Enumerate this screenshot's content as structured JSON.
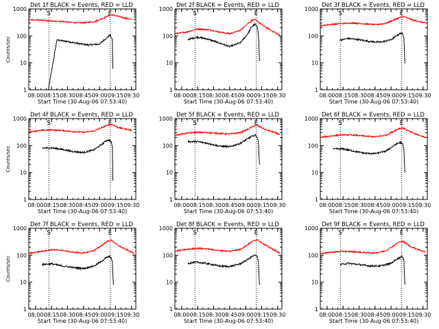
{
  "figure": {
    "xlabel": "Start Time (30-Aug-06 07:53:40)",
    "ylabel": "Counts/sec",
    "x_ticks": [
      "08:00",
      "08:15",
      "08:30",
      "08:45",
      "09:00",
      "09:15",
      "09:30"
    ],
    "y_ticks": [
      "1",
      "10",
      "100",
      "1000"
    ],
    "marker_s": "S",
    "marker_e": "E",
    "colors": {
      "events": "#000000",
      "lld": "#ff0000",
      "axes": "#000000",
      "background": "#ffffff"
    }
  },
  "chart_data": [
    {
      "type": "line",
      "title": "Det 1f BLACK = Events, RED = LLD",
      "xlabel": "Start Time (30-Aug-06 07:53:40)",
      "ylabel": "Counts/sec",
      "x_range": [
        "07:53:40",
        "09:34:00"
      ],
      "ylim": [
        1,
        1000
      ],
      "y_scale": "log",
      "x_ticks": [
        "08:00",
        "08:15",
        "08:30",
        "08:45",
        "09:00",
        "09:15",
        "09:30"
      ],
      "markers": [
        {
          "label": "S",
          "x": "08:12:30"
        },
        {
          "label": "E",
          "x": "09:10:00"
        }
      ],
      "series": [
        {
          "name": "Events",
          "color": "#000000",
          "x": [
            "08:12:00",
            "08:20:00",
            "08:30:00",
            "08:40:00",
            "08:50:00",
            "09:00:00",
            "09:05:00",
            "09:09:00",
            "09:10:00",
            "09:12:00",
            "09:12:30"
          ],
          "y": [
            1,
            70,
            62,
            52,
            46,
            50,
            75,
            100,
            110,
            70,
            6
          ]
        },
        {
          "name": "LLD",
          "color": "#ff0000",
          "x": [
            "07:53:40",
            "08:05:00",
            "08:15:00",
            "08:25:00",
            "08:35:00",
            "08:45:00",
            "08:55:00",
            "09:02:00",
            "09:08:00",
            "09:12:00",
            "09:20:00",
            "09:30:00"
          ],
          "y": [
            400,
            380,
            350,
            340,
            310,
            305,
            335,
            430,
            550,
            600,
            500,
            400
          ]
        }
      ]
    },
    {
      "type": "line",
      "title": "Det 2f BLACK = Events, RED = LLD",
      "xlabel": "Start Time (30-Aug-06 07:53:40)",
      "ylabel": "Counts/sec",
      "x_range": [
        "07:53:40",
        "09:34:00"
      ],
      "ylim": [
        1,
        1000
      ],
      "y_scale": "log",
      "x_ticks": [
        "08:00",
        "08:15",
        "08:30",
        "08:45",
        "09:00",
        "09:15",
        "09:30"
      ],
      "markers": [
        {
          "label": "S",
          "x": "08:12:30"
        },
        {
          "label": "E",
          "x": "09:10:00"
        }
      ],
      "series": [
        {
          "name": "Events",
          "color": "#000000",
          "x": [
            "08:06:00",
            "08:15:00",
            "08:25:00",
            "08:35:00",
            "08:45:00",
            "08:55:00",
            "09:02:00",
            "09:06:00",
            "09:09:00",
            "09:11:00",
            "09:12:00",
            "09:13:00"
          ],
          "y": [
            75,
            90,
            75,
            55,
            40,
            55,
            120,
            230,
            270,
            200,
            120,
            12
          ]
        },
        {
          "name": "LLD",
          "color": "#ff0000",
          "x": [
            "07:53:40",
            "08:05:00",
            "08:15:00",
            "08:25:00",
            "08:35:00",
            "08:45:00",
            "08:55:00",
            "09:02:00",
            "09:07:00",
            "09:10:00",
            "09:15:00",
            "09:25:00",
            "09:32:00"
          ],
          "y": [
            120,
            140,
            180,
            170,
            140,
            120,
            160,
            290,
            400,
            380,
            260,
            150,
            105
          ]
        }
      ]
    },
    {
      "type": "line",
      "title": "Det 3f BLACK = Events, RED = LLD",
      "xlabel": "Start Time (30-Aug-06 07:53:40)",
      "ylabel": "Counts/sec",
      "x_range": [
        "07:53:40",
        "09:34:00"
      ],
      "ylim": [
        1,
        1000
      ],
      "y_scale": "log",
      "x_ticks": [
        "08:00",
        "08:15",
        "08:30",
        "08:45",
        "09:00",
        "09:15",
        "09:30"
      ],
      "markers": [
        {
          "label": "S",
          "x": "08:12:30"
        },
        {
          "label": "E",
          "x": "09:10:00"
        }
      ],
      "series": [
        {
          "name": "Events",
          "color": "#000000",
          "x": [
            "08:12:00",
            "08:20:00",
            "08:30:00",
            "08:40:00",
            "08:50:00",
            "09:00:00",
            "09:05:00",
            "09:09:00",
            "09:10:00",
            "09:12:00",
            "09:13:00"
          ],
          "y": [
            70,
            80,
            72,
            62,
            58,
            72,
            100,
            125,
            130,
            90,
            10
          ]
        },
        {
          "name": "LLD",
          "color": "#ff0000",
          "x": [
            "07:53:40",
            "08:05:00",
            "08:15:00",
            "08:25:00",
            "08:35:00",
            "08:45:00",
            "08:55:00",
            "09:02:00",
            "09:08:00",
            "09:12:00",
            "09:20:00",
            "09:32:00"
          ],
          "y": [
            240,
            270,
            290,
            300,
            280,
            260,
            290,
            380,
            480,
            520,
            390,
            300
          ]
        }
      ]
    },
    {
      "type": "line",
      "title": "Det 4f BLACK = Events, RED = LLD",
      "xlabel": "Start Time (30-Aug-06 07:53:40)",
      "ylabel": "Counts/sec",
      "x_range": [
        "07:53:40",
        "09:34:00"
      ],
      "ylim": [
        1,
        1000
      ],
      "y_scale": "log",
      "x_ticks": [
        "08:00",
        "08:15",
        "08:30",
        "08:45",
        "09:00",
        "09:15",
        "09:30"
      ],
      "markers": [
        {
          "label": "S",
          "x": "08:12:30"
        },
        {
          "label": "E",
          "x": "09:10:00"
        }
      ],
      "series": [
        {
          "name": "Events",
          "color": "#000000",
          "x": [
            "08:06:00",
            "08:15:00",
            "08:25:00",
            "08:35:00",
            "08:45:00",
            "08:55:00",
            "09:02:00",
            "09:06:00",
            "09:09:00",
            "09:11:00",
            "09:12:00",
            "09:12:30"
          ],
          "y": [
            80,
            82,
            72,
            60,
            55,
            70,
            110,
            150,
            160,
            130,
            90,
            5
          ]
        },
        {
          "name": "LLD",
          "color": "#ff0000",
          "x": [
            "07:53:40",
            "08:05:00",
            "08:15:00",
            "08:25:00",
            "08:35:00",
            "08:45:00",
            "08:55:00",
            "09:02:00",
            "09:07:00",
            "09:11:00",
            "09:18:00",
            "09:30:00"
          ],
          "y": [
            330,
            360,
            380,
            360,
            330,
            310,
            350,
            460,
            560,
            620,
            460,
            370
          ]
        }
      ]
    },
    {
      "type": "line",
      "title": "Det 5f BLACK = Events, RED = LLD",
      "xlabel": "Start Time (30-Aug-06 07:53:40)",
      "ylabel": "Counts/sec",
      "x_range": [
        "07:53:40",
        "09:34:00"
      ],
      "ylim": [
        1,
        1000
      ],
      "y_scale": "log",
      "x_ticks": [
        "08:00",
        "08:15",
        "08:30",
        "08:45",
        "09:00",
        "09:15",
        "09:30"
      ],
      "markers": [
        {
          "label": "S",
          "x": "08:12:30"
        },
        {
          "label": "E",
          "x": "09:10:00"
        }
      ],
      "series": [
        {
          "name": "Events",
          "color": "#000000",
          "x": [
            "08:06:00",
            "08:15:00",
            "08:25:00",
            "08:35:00",
            "08:45:00",
            "08:55:00",
            "09:02:00",
            "09:06:00",
            "09:09:00",
            "09:11:00",
            "09:12:00",
            "09:13:00"
          ],
          "y": [
            140,
            140,
            120,
            95,
            90,
            120,
            180,
            220,
            240,
            200,
            120,
            20
          ]
        },
        {
          "name": "LLD",
          "color": "#ff0000",
          "x": [
            "07:53:40",
            "08:05:00",
            "08:15:00",
            "08:25:00",
            "08:35:00",
            "08:45:00",
            "08:55:00",
            "09:02:00",
            "09:07:00",
            "09:11:00",
            "09:18:00",
            "09:32:00"
          ],
          "y": [
            240,
            290,
            310,
            300,
            280,
            270,
            300,
            400,
            520,
            560,
            400,
            260
          ]
        }
      ]
    },
    {
      "type": "line",
      "title": "Det 6f BLACK = Events, RED = LLD",
      "xlabel": "Start Time (30-Aug-06 07:53:40)",
      "ylabel": "Counts/sec",
      "x_range": [
        "07:53:40",
        "09:34:00"
      ],
      "ylim": [
        1,
        1000
      ],
      "y_scale": "log",
      "x_ticks": [
        "08:00",
        "08:15",
        "08:30",
        "08:45",
        "09:00",
        "09:15",
        "09:30"
      ],
      "markers": [
        {
          "label": "S",
          "x": "08:12:30"
        },
        {
          "label": "E",
          "x": "09:10:00"
        }
      ],
      "series": [
        {
          "name": "Events",
          "color": "#000000",
          "x": [
            "08:06:00",
            "08:15:00",
            "08:25:00",
            "08:35:00",
            "08:45:00",
            "08:55:00",
            "09:02:00",
            "09:06:00",
            "09:09:00",
            "09:11:00",
            "09:12:00",
            "09:13:00"
          ],
          "y": [
            75,
            75,
            62,
            52,
            50,
            62,
            95,
            120,
            130,
            110,
            70,
            10
          ]
        },
        {
          "name": "LLD",
          "color": "#ff0000",
          "x": [
            "07:53:40",
            "08:05:00",
            "08:15:00",
            "08:25:00",
            "08:35:00",
            "08:45:00",
            "08:55:00",
            "09:02:00",
            "09:07:00",
            "09:11:00",
            "09:18:00",
            "09:32:00"
          ],
          "y": [
            200,
            230,
            250,
            245,
            225,
            210,
            240,
            330,
            420,
            450,
            320,
            200
          ]
        }
      ]
    },
    {
      "type": "line",
      "title": "Det 7f BLACK = Events, RED = LLD",
      "xlabel": "Start Time (30-Aug-06 07:53:40)",
      "ylabel": "Counts/sec",
      "x_range": [
        "07:53:40",
        "09:34:00"
      ],
      "ylim": [
        1,
        1000
      ],
      "y_scale": "log",
      "x_ticks": [
        "08:00",
        "08:15",
        "08:30",
        "08:45",
        "09:00",
        "09:15",
        "09:30"
      ],
      "markers": [
        {
          "label": "S",
          "x": "08:12:30"
        },
        {
          "label": "E",
          "x": "09:10:00"
        }
      ],
      "series": [
        {
          "name": "Events",
          "color": "#000000",
          "x": [
            "08:06:00",
            "08:15:00",
            "08:25:00",
            "08:35:00",
            "08:45:00",
            "08:55:00",
            "09:02:00",
            "09:06:00",
            "09:09:00",
            "09:11:00",
            "09:12:00",
            "09:13:00"
          ],
          "y": [
            45,
            48,
            40,
            35,
            32,
            40,
            60,
            80,
            90,
            80,
            50,
            8
          ]
        },
        {
          "name": "LLD",
          "color": "#ff0000",
          "x": [
            "07:53:40",
            "08:05:00",
            "08:15:00",
            "08:25:00",
            "08:35:00",
            "08:45:00",
            "08:55:00",
            "09:02:00",
            "09:07:00",
            "09:11:00",
            "09:18:00",
            "09:32:00"
          ],
          "y": [
            115,
            140,
            160,
            150,
            130,
            120,
            150,
            230,
            320,
            360,
            220,
            120
          ]
        }
      ]
    },
    {
      "type": "line",
      "title": "Det 8f BLACK = Events, RED = LLD",
      "xlabel": "Start Time (30-Aug-06 07:53:40)",
      "ylabel": "Counts/sec",
      "x_range": [
        "07:53:40",
        "09:34:00"
      ],
      "ylim": [
        1,
        1000
      ],
      "y_scale": "log",
      "x_ticks": [
        "08:00",
        "08:15",
        "08:30",
        "08:45",
        "09:00",
        "09:15",
        "09:30"
      ],
      "markers": [
        {
          "label": "S",
          "x": "08:12:30"
        },
        {
          "label": "E",
          "x": "09:10:00"
        }
      ],
      "series": [
        {
          "name": "Events",
          "color": "#000000",
          "x": [
            "08:06:00",
            "08:15:00",
            "08:25:00",
            "08:35:00",
            "08:45:00",
            "08:55:00",
            "09:02:00",
            "09:06:00",
            "09:09:00",
            "09:11:00",
            "09:12:00",
            "09:13:00"
          ],
          "y": [
            50,
            55,
            48,
            40,
            38,
            48,
            70,
            90,
            100,
            85,
            50,
            8
          ]
        },
        {
          "name": "LLD",
          "color": "#ff0000",
          "x": [
            "07:53:40",
            "08:05:00",
            "08:15:00",
            "08:25:00",
            "08:35:00",
            "08:45:00",
            "08:55:00",
            "09:02:00",
            "09:07:00",
            "09:11:00",
            "09:18:00",
            "09:32:00"
          ],
          "y": [
            140,
            165,
            180,
            170,
            150,
            140,
            165,
            250,
            340,
            380,
            240,
            120
          ]
        }
      ]
    },
    {
      "type": "line",
      "title": "Det 9f BLACK = Events, RED = LLD",
      "xlabel": "Start Time (30-Aug-06 07:53:40)",
      "ylabel": "Counts/sec",
      "x_range": [
        "07:53:40",
        "09:34:00"
      ],
      "ylim": [
        1,
        1000
      ],
      "y_scale": "log",
      "x_ticks": [
        "08:00",
        "08:15",
        "08:30",
        "08:45",
        "09:00",
        "09:15",
        "09:30"
      ],
      "markers": [
        {
          "label": "S",
          "x": "08:12:30"
        },
        {
          "label": "E",
          "x": "09:10:00"
        }
      ],
      "series": [
        {
          "name": "Events",
          "color": "#000000",
          "x": [
            "08:12:00",
            "08:20:00",
            "08:30:00",
            "08:40:00",
            "08:50:00",
            "09:00:00",
            "09:05:00",
            "09:09:00",
            "09:10:00",
            "09:12:00",
            "09:13:00"
          ],
          "y": [
            45,
            50,
            45,
            40,
            40,
            50,
            70,
            85,
            90,
            70,
            8
          ]
        },
        {
          "name": "LLD",
          "color": "#ff0000",
          "x": [
            "07:53:40",
            "08:05:00",
            "08:15:00",
            "08:25:00",
            "08:35:00",
            "08:45:00",
            "08:55:00",
            "09:02:00",
            "09:07:00",
            "09:11:00",
            "09:18:00",
            "09:32:00"
          ],
          "y": [
            115,
            130,
            140,
            135,
            125,
            120,
            145,
            220,
            300,
            330,
            210,
            130
          ]
        }
      ]
    }
  ]
}
